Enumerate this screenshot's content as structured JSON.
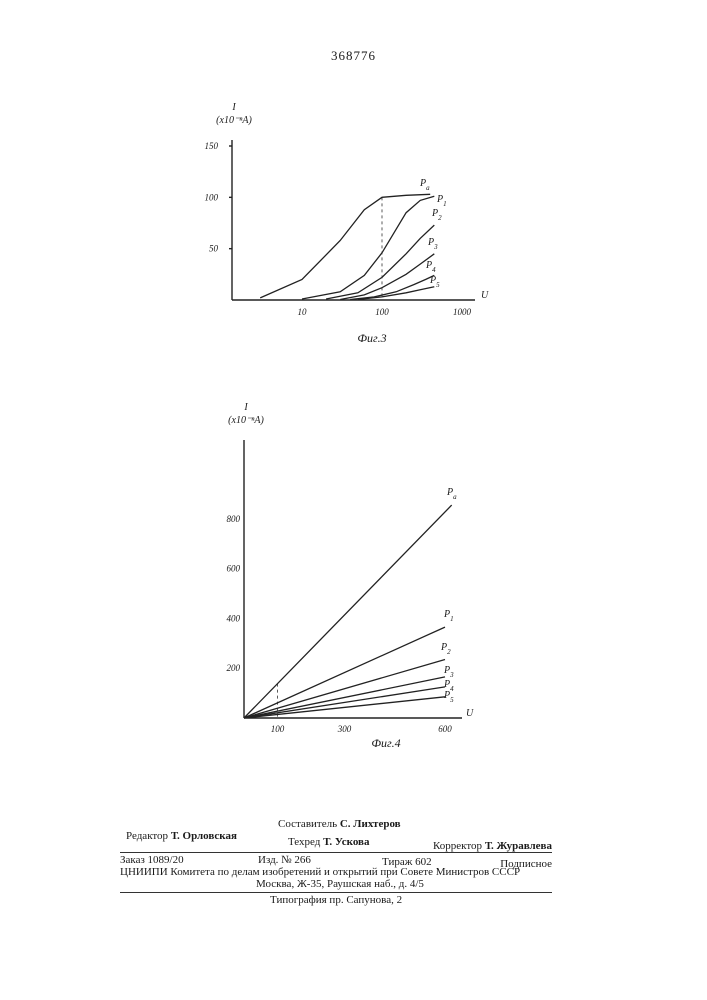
{
  "page_number": "368776",
  "chart_data": [
    {
      "type": "line",
      "caption": "Фиг.3",
      "ylabel": "I",
      "ylabel_units": "(x10⁻ⁿA)",
      "xlabel": "U",
      "x_scale": "log",
      "x_ticks": [
        10,
        100,
        1000
      ],
      "x_tick_labels": [
        "10",
        "100",
        "1000"
      ],
      "ylim": [
        0,
        150
      ],
      "y_ticks": [
        50,
        100,
        150
      ],
      "y_tick_labels": [
        "50",
        "100",
        "150"
      ],
      "grid": false,
      "reference_line_x": 100,
      "series": [
        {
          "name": "Pa",
          "label_main": "P",
          "label_sub": "a",
          "x": [
            3,
            10,
            30,
            60,
            100,
            200,
            400
          ],
          "y": [
            2,
            20,
            58,
            88,
            100,
            102,
            103
          ]
        },
        {
          "name": "P1",
          "label_main": "P",
          "label_sub": "1",
          "x": [
            10,
            30,
            60,
            100,
            200,
            300,
            450
          ],
          "y": [
            1,
            8,
            24,
            46,
            85,
            97,
            101
          ]
        },
        {
          "name": "P2",
          "label_main": "P",
          "label_sub": "2",
          "x": [
            20,
            50,
            100,
            200,
            300,
            450
          ],
          "y": [
            1,
            7,
            22,
            45,
            60,
            73
          ]
        },
        {
          "name": "P3",
          "label_main": "P",
          "label_sub": "3",
          "x": [
            30,
            60,
            100,
            200,
            300,
            450
          ],
          "y": [
            0.5,
            5,
            12,
            25,
            35,
            45
          ]
        },
        {
          "name": "P4",
          "label_main": "P",
          "label_sub": "4",
          "x": [
            40,
            80,
            150,
            250,
            350,
            450
          ],
          "y": [
            0.5,
            3,
            8,
            15,
            20,
            24
          ]
        },
        {
          "name": "P5",
          "label_main": "P",
          "label_sub": "5",
          "x": [
            50,
            100,
            200,
            300,
            450
          ],
          "y": [
            0.5,
            3,
            7,
            10,
            13
          ]
        }
      ]
    },
    {
      "type": "line",
      "caption": "Фиг.4",
      "ylabel": "I",
      "ylabel_units": "(x10⁻ⁿA)",
      "xlabel": "U",
      "x_scale": "linear",
      "xlim": [
        0,
        650
      ],
      "x_ticks": [
        100,
        300,
        600
      ],
      "x_tick_labels": [
        "100",
        "300",
        "600"
      ],
      "ylim": [
        0,
        1000
      ],
      "y_ticks": [
        200,
        400,
        600,
        800
      ],
      "y_tick_labels": [
        "200",
        "400",
        "600",
        "800"
      ],
      "grid": false,
      "reference_line_x": 100,
      "series": [
        {
          "name": "Pa",
          "label_main": "P",
          "label_sub": "a",
          "x": [
            0,
            620
          ],
          "y": [
            0,
            855
          ]
        },
        {
          "name": "P1",
          "label_main": "P",
          "label_sub": "1",
          "x": [
            0,
            600
          ],
          "y": [
            0,
            365
          ]
        },
        {
          "name": "P2",
          "label_main": "P",
          "label_sub": "2",
          "x": [
            0,
            600
          ],
          "y": [
            0,
            235
          ]
        },
        {
          "name": "P3",
          "label_main": "P",
          "label_sub": "3",
          "x": [
            0,
            600
          ],
          "y": [
            0,
            165
          ]
        },
        {
          "name": "P4",
          "label_main": "P",
          "label_sub": "4",
          "x": [
            0,
            600
          ],
          "y": [
            0,
            125
          ]
        },
        {
          "name": "P5",
          "label_main": "P",
          "label_sub": "5",
          "x": [
            0,
            600
          ],
          "y": [
            0,
            85
          ]
        }
      ]
    }
  ],
  "colophon": {
    "compiler_label": "Составитель",
    "compiler_name": "С. Лихтеров",
    "editor_label": "Редактор",
    "editor_name": "Т. Орловская",
    "tech_label": "Техред",
    "tech_name": "Т. Ускова",
    "corrector_label": "Корректор",
    "corrector_name": "Т. Журавлева",
    "order": "Заказ 1089/20",
    "edition": "Изд. № 266",
    "circulation": "Тираж 602",
    "subscription": "Подписное",
    "institute": "ЦНИИПИ Комитета по делам изобретений и открытий при Совете Министров СССР",
    "address": "Москва, Ж-35, Раушская наб., д. 4/5",
    "printing_house": "Типография пр. Сапунова, 2"
  }
}
